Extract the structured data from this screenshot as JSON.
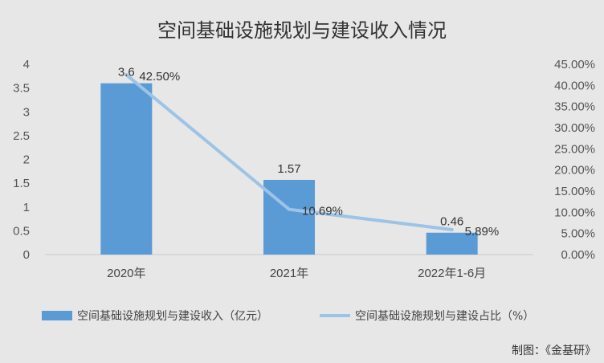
{
  "chart_data": {
    "type": "bar",
    "title": "空间基础设施规划与建设收入情况",
    "categories": [
      "2020年",
      "2021年",
      "2022年1-6月"
    ],
    "series": [
      {
        "name": "空间基础设施规划与建设收入（亿元）",
        "type": "bar",
        "axis": "left",
        "values": [
          3.6,
          1.57,
          0.46
        ],
        "labels": [
          "3.6",
          "1.57",
          "0.46"
        ],
        "color": "#5b9bd5"
      },
      {
        "name": "空间基础设施规划与建设占比（%）",
        "type": "line",
        "axis": "right",
        "values": [
          42.5,
          10.69,
          5.89
        ],
        "labels": [
          "42.50%",
          "10.69%",
          "5.89%"
        ],
        "color": "#9dc3e6"
      }
    ],
    "y_left": {
      "range": [
        0,
        4
      ],
      "ticks": [
        "0",
        "0.5",
        "1",
        "1.5",
        "2",
        "2.5",
        "3",
        "3.5",
        "4"
      ]
    },
    "y_right": {
      "range": [
        0,
        45
      ],
      "ticks": [
        "0.00%",
        "5.00%",
        "10.00%",
        "15.00%",
        "20.00%",
        "25.00%",
        "30.00%",
        "35.00%",
        "40.00%",
        "45.00%"
      ]
    },
    "grid": false,
    "legend_position": "bottom"
  },
  "credit": "制图：《金基研》"
}
